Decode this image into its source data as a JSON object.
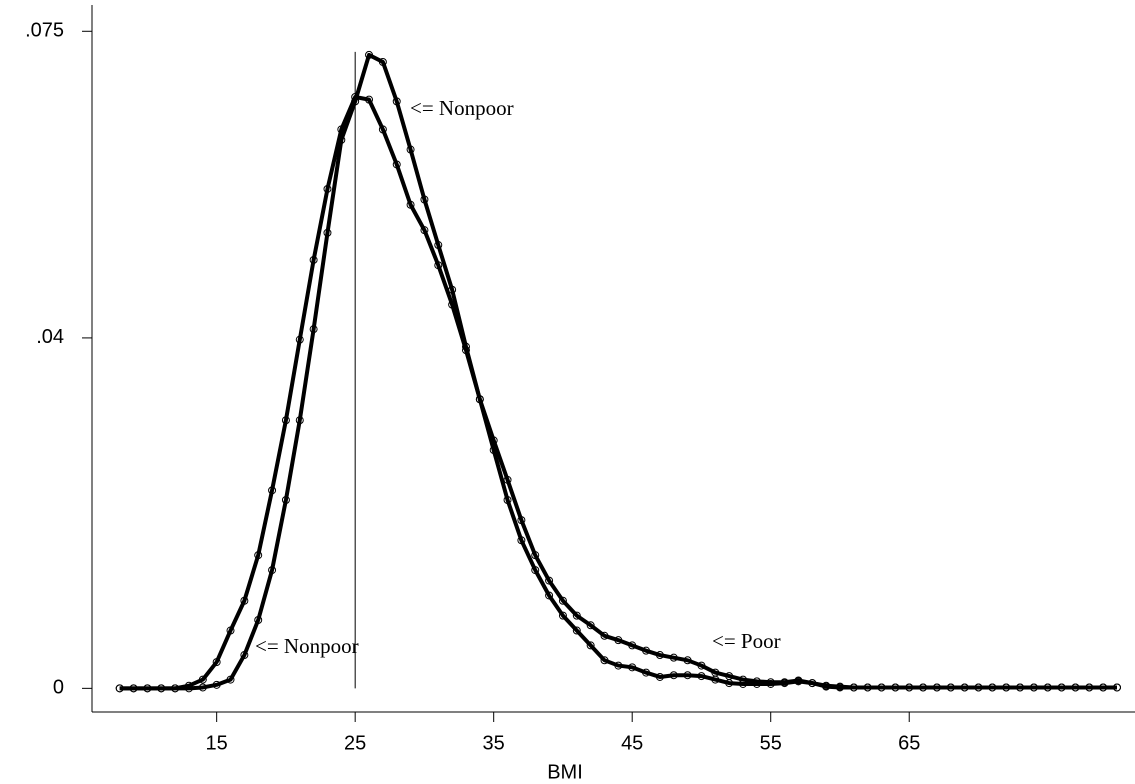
{
  "chart_data": {
    "type": "line",
    "x_label": "BMI",
    "x": [
      8,
      9,
      10,
      11,
      12,
      13,
      14,
      15,
      16,
      17,
      18,
      19,
      20,
      21,
      22,
      23,
      24,
      25,
      26,
      27,
      28,
      29,
      30,
      31,
      32,
      33,
      34,
      35,
      36,
      37,
      38,
      39,
      40,
      41,
      42,
      43,
      44,
      45,
      46,
      47,
      48,
      49,
      50,
      51,
      52,
      53,
      54,
      55,
      56,
      57,
      58,
      59,
      60,
      61,
      62,
      63,
      64,
      65,
      66,
      67,
      68,
      69,
      70,
      71,
      72,
      73,
      74,
      75,
      76,
      77,
      78,
      79,
      80
    ],
    "series": [
      {
        "color": "#000000",
        "values": [
          0,
          0,
          0,
          0,
          0,
          0,
          0.0001,
          0.0004,
          0.001,
          0.0038,
          0.0078,
          0.0135,
          0.0215,
          0.0306,
          0.041,
          0.052,
          0.0626,
          0.067,
          0.0723,
          0.0715,
          0.067,
          0.0615,
          0.0558,
          0.0506,
          0.0455,
          0.039,
          0.033,
          0.0283,
          0.0238,
          0.0192,
          0.0152,
          0.0123,
          0.01,
          0.0083,
          0.0072,
          0.006,
          0.0055,
          0.0049,
          0.0043,
          0.0038,
          0.0035,
          0.0032,
          0.0026,
          0.0018,
          0.0014,
          0.001,
          0.0008,
          0.0007,
          0.0007,
          0.0009,
          0.0006,
          0.0003,
          0.0002,
          0.0001,
          0.0001,
          0.0001,
          0.0001,
          0.0001,
          0.0001,
          0.0001,
          0.0001,
          0.0001,
          0.0001,
          0.0001,
          0.0001,
          0.0001,
          0.0001,
          0.0001,
          0.0001,
          0.0001,
          0.0001,
          0.0001,
          0.0001
        ]
      },
      {
        "color": "#000000",
        "values": [
          0,
          0,
          0,
          0,
          0,
          0.0003,
          0.001,
          0.003,
          0.0066,
          0.01,
          0.0152,
          0.0226,
          0.0306,
          0.0398,
          0.0489,
          0.057,
          0.0638,
          0.0675,
          0.0672,
          0.0638,
          0.0598,
          0.0552,
          0.0523,
          0.0483,
          0.0438,
          0.0386,
          0.033,
          0.0272,
          0.0215,
          0.0169,
          0.0135,
          0.0106,
          0.0083,
          0.0066,
          0.0049,
          0.0032,
          0.0026,
          0.0024,
          0.0018,
          0.0013,
          0.0015,
          0.0015,
          0.0014,
          0.001,
          0.0006,
          0.0005,
          0.0005,
          0.0005,
          0.0006,
          0.0008,
          0.0006,
          0.0002,
          0.0001,
          0.0001,
          0.0001,
          0.0001,
          0.0001,
          0.0001,
          0.0001,
          0.0001,
          0.0001,
          0.0001,
          0.0001,
          0.0001,
          0.0001,
          0.0001,
          0.0001,
          0.0001,
          0.0001,
          0.0001,
          0.0001,
          0.0001,
          0.0001
        ]
      }
    ],
    "reference_line_x": 25,
    "annotations": [
      "<= Nonpoor",
      "<= Nonpoor",
      "<= Poor"
    ],
    "xlim": [
      6,
      81.3
    ],
    "xticks": [
      15,
      25,
      35,
      45,
      55,
      65
    ],
    "ylim": [
      -0.0027,
      0.078
    ],
    "yticks": [
      0,
      {
        "value": 0.04,
        "label": ".04"
      },
      {
        "value": 0.075,
        "label": ".075"
      }
    ],
    "grid": false
  }
}
